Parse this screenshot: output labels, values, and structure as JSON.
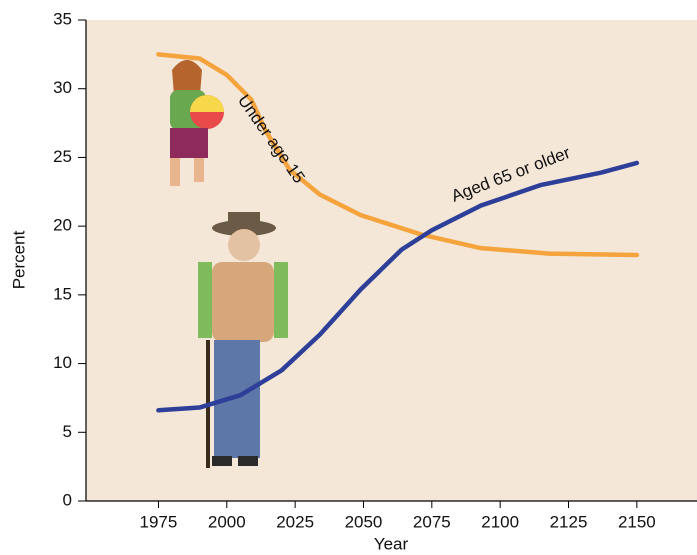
{
  "chart_data": {
    "type": "line",
    "xlabel": "Year",
    "ylabel": "Percent",
    "xlim": [
      1948.5,
      2172
    ],
    "ylim": [
      0,
      35
    ],
    "xticks": [
      1975,
      2000,
      2025,
      2050,
      2075,
      2100,
      2125,
      2150
    ],
    "yticks": [
      0,
      5,
      10,
      15,
      20,
      25,
      30,
      35
    ],
    "series": [
      {
        "name": "Under age 15",
        "color": "#f5a33c",
        "x": [
          1975,
          1990,
          2000,
          2009,
          2014,
          2023,
          2034,
          2049,
          2071,
          2093,
          2118,
          2150
        ],
        "values": [
          32.5,
          32.2,
          31.0,
          29.2,
          27.0,
          24.1,
          22.3,
          20.8,
          19.4,
          18.4,
          18.0,
          17.9
        ]
      },
      {
        "name": "Aged 65 or older",
        "color": "#2d3f99",
        "x": [
          1975,
          1990,
          2005,
          2020,
          2034,
          2049,
          2064,
          2075,
          2093,
          2115,
          2137,
          2150
        ],
        "values": [
          6.6,
          6.8,
          7.7,
          9.5,
          12.1,
          15.4,
          18.3,
          19.7,
          21.5,
          23.0,
          23.9,
          24.6
        ]
      }
    ]
  }
}
